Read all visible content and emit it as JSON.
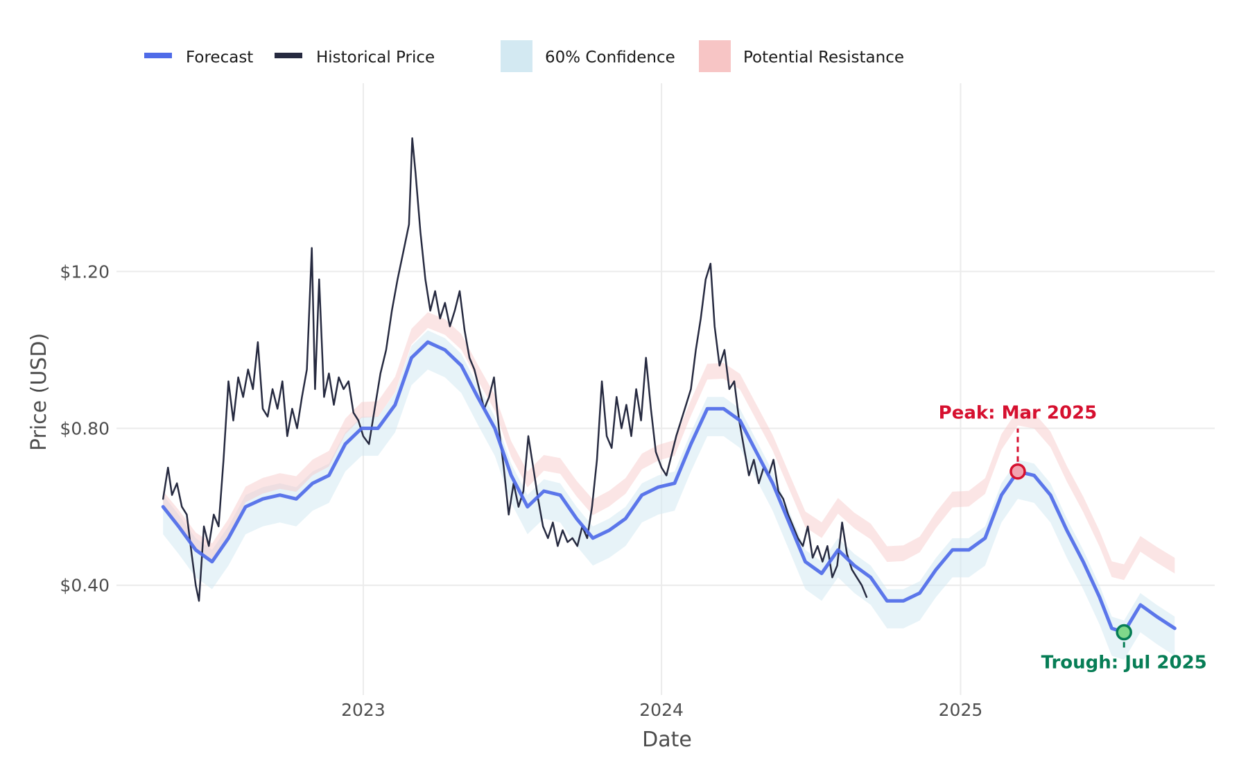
{
  "chart_data": {
    "type": "line",
    "title": "",
    "xlabel": "Date",
    "ylabel": "Price (USD)",
    "x_ticks": [
      "2023",
      "2024",
      "2025"
    ],
    "y_ticks": [
      "$0.40",
      "$0.80",
      "$1.20"
    ],
    "y_tick_values": [
      0.4,
      0.8,
      1.2
    ],
    "xlim": [
      "2022-03-05",
      "2025-11-08"
    ],
    "ylim": [
      0.12,
      1.68
    ],
    "grid": true,
    "legend_position": "top",
    "legend": [
      {
        "label": "Forecast",
        "kind": "line",
        "color": "#4f6be8"
      },
      {
        "label": "Historical Price",
        "kind": "line",
        "color": "#262a40"
      },
      {
        "label": "60% Confidence",
        "kind": "band",
        "color": "#d3e9f2"
      },
      {
        "label": "Potential Resistance",
        "kind": "band",
        "color": "#f7c5c5"
      }
    ],
    "series": [
      {
        "name": "Historical Price",
        "color": "#262a40",
        "points": [
          [
            "2022-05-01",
            0.62
          ],
          [
            "2022-05-07",
            0.7
          ],
          [
            "2022-05-12",
            0.63
          ],
          [
            "2022-05-18",
            0.66
          ],
          [
            "2022-05-24",
            0.6
          ],
          [
            "2022-05-30",
            0.58
          ],
          [
            "2022-06-05",
            0.48
          ],
          [
            "2022-06-10",
            0.4
          ],
          [
            "2022-06-14",
            0.36
          ],
          [
            "2022-06-20",
            0.55
          ],
          [
            "2022-06-26",
            0.5
          ],
          [
            "2022-07-02",
            0.58
          ],
          [
            "2022-07-08",
            0.55
          ],
          [
            "2022-07-14",
            0.72
          ],
          [
            "2022-07-20",
            0.92
          ],
          [
            "2022-07-26",
            0.82
          ],
          [
            "2022-08-01",
            0.93
          ],
          [
            "2022-08-07",
            0.88
          ],
          [
            "2022-08-13",
            0.95
          ],
          [
            "2022-08-19",
            0.9
          ],
          [
            "2022-08-25",
            1.02
          ],
          [
            "2022-08-31",
            0.85
          ],
          [
            "2022-09-06",
            0.83
          ],
          [
            "2022-09-12",
            0.9
          ],
          [
            "2022-09-18",
            0.85
          ],
          [
            "2022-09-24",
            0.92
          ],
          [
            "2022-09-30",
            0.78
          ],
          [
            "2022-10-06",
            0.85
          ],
          [
            "2022-10-12",
            0.8
          ],
          [
            "2022-10-18",
            0.88
          ],
          [
            "2022-10-24",
            0.95
          ],
          [
            "2022-10-30",
            1.26
          ],
          [
            "2022-11-03",
            0.9
          ],
          [
            "2022-11-08",
            1.18
          ],
          [
            "2022-11-14",
            0.88
          ],
          [
            "2022-11-20",
            0.94
          ],
          [
            "2022-11-26",
            0.86
          ],
          [
            "2022-12-02",
            0.93
          ],
          [
            "2022-12-08",
            0.9
          ],
          [
            "2022-12-14",
            0.92
          ],
          [
            "2022-12-20",
            0.84
          ],
          [
            "2022-12-26",
            0.82
          ],
          [
            "2023-01-01",
            0.78
          ],
          [
            "2023-01-08",
            0.76
          ],
          [
            "2023-01-15",
            0.85
          ],
          [
            "2023-01-22",
            0.94
          ],
          [
            "2023-01-29",
            1.0
          ],
          [
            "2023-02-05",
            1.1
          ],
          [
            "2023-02-12",
            1.18
          ],
          [
            "2023-02-19",
            1.25
          ],
          [
            "2023-02-26",
            1.32
          ],
          [
            "2023-03-02",
            1.54
          ],
          [
            "2023-03-06",
            1.45
          ],
          [
            "2023-03-12",
            1.3
          ],
          [
            "2023-03-18",
            1.18
          ],
          [
            "2023-03-24",
            1.1
          ],
          [
            "2023-03-30",
            1.15
          ],
          [
            "2023-04-05",
            1.08
          ],
          [
            "2023-04-11",
            1.12
          ],
          [
            "2023-04-17",
            1.06
          ],
          [
            "2023-04-23",
            1.1
          ],
          [
            "2023-04-29",
            1.15
          ],
          [
            "2023-05-05",
            1.05
          ],
          [
            "2023-05-11",
            0.98
          ],
          [
            "2023-05-17",
            0.95
          ],
          [
            "2023-05-23",
            0.9
          ],
          [
            "2023-05-29",
            0.85
          ],
          [
            "2023-06-04",
            0.88
          ],
          [
            "2023-06-10",
            0.93
          ],
          [
            "2023-06-16",
            0.8
          ],
          [
            "2023-06-22",
            0.7
          ],
          [
            "2023-06-28",
            0.58
          ],
          [
            "2023-07-04",
            0.66
          ],
          [
            "2023-07-10",
            0.6
          ],
          [
            "2023-07-16",
            0.64
          ],
          [
            "2023-07-22",
            0.78
          ],
          [
            "2023-07-28",
            0.7
          ],
          [
            "2023-08-03",
            0.62
          ],
          [
            "2023-08-09",
            0.55
          ],
          [
            "2023-08-15",
            0.52
          ],
          [
            "2023-08-21",
            0.56
          ],
          [
            "2023-08-27",
            0.5
          ],
          [
            "2023-09-02",
            0.54
          ],
          [
            "2023-09-08",
            0.51
          ],
          [
            "2023-09-14",
            0.52
          ],
          [
            "2023-09-20",
            0.5
          ],
          [
            "2023-09-26",
            0.55
          ],
          [
            "2023-10-02",
            0.52
          ],
          [
            "2023-10-08",
            0.6
          ],
          [
            "2023-10-14",
            0.72
          ],
          [
            "2023-10-20",
            0.92
          ],
          [
            "2023-10-26",
            0.78
          ],
          [
            "2023-11-01",
            0.75
          ],
          [
            "2023-11-07",
            0.88
          ],
          [
            "2023-11-13",
            0.8
          ],
          [
            "2023-11-19",
            0.86
          ],
          [
            "2023-11-25",
            0.78
          ],
          [
            "2023-12-01",
            0.9
          ],
          [
            "2023-12-07",
            0.82
          ],
          [
            "2023-12-13",
            0.98
          ],
          [
            "2023-12-19",
            0.85
          ],
          [
            "2023-12-25",
            0.74
          ],
          [
            "2024-01-01",
            0.7
          ],
          [
            "2024-01-07",
            0.68
          ],
          [
            "2024-01-13",
            0.73
          ],
          [
            "2024-01-19",
            0.78
          ],
          [
            "2024-01-25",
            0.82
          ],
          [
            "2024-01-31",
            0.86
          ],
          [
            "2024-02-06",
            0.9
          ],
          [
            "2024-02-12",
            1.0
          ],
          [
            "2024-02-18",
            1.08
          ],
          [
            "2024-02-24",
            1.18
          ],
          [
            "2024-03-01",
            1.22
          ],
          [
            "2024-03-06",
            1.06
          ],
          [
            "2024-03-12",
            0.96
          ],
          [
            "2024-03-18",
            1.0
          ],
          [
            "2024-03-24",
            0.9
          ],
          [
            "2024-03-30",
            0.92
          ],
          [
            "2024-04-05",
            0.82
          ],
          [
            "2024-04-11",
            0.75
          ],
          [
            "2024-04-17",
            0.68
          ],
          [
            "2024-04-23",
            0.72
          ],
          [
            "2024-04-29",
            0.66
          ],
          [
            "2024-05-05",
            0.7
          ],
          [
            "2024-05-11",
            0.68
          ],
          [
            "2024-05-17",
            0.72
          ],
          [
            "2024-05-23",
            0.64
          ],
          [
            "2024-05-29",
            0.62
          ],
          [
            "2024-06-04",
            0.58
          ],
          [
            "2024-06-10",
            0.55
          ],
          [
            "2024-06-16",
            0.52
          ],
          [
            "2024-06-22",
            0.5
          ],
          [
            "2024-06-28",
            0.55
          ],
          [
            "2024-07-04",
            0.47
          ],
          [
            "2024-07-10",
            0.5
          ],
          [
            "2024-07-16",
            0.46
          ],
          [
            "2024-07-22",
            0.5
          ],
          [
            "2024-07-28",
            0.42
          ],
          [
            "2024-08-03",
            0.45
          ],
          [
            "2024-08-09",
            0.56
          ],
          [
            "2024-08-15",
            0.48
          ],
          [
            "2024-08-21",
            0.44
          ],
          [
            "2024-08-27",
            0.42
          ],
          [
            "2024-09-02",
            0.4
          ],
          [
            "2024-09-08",
            0.37
          ]
        ]
      },
      {
        "name": "Forecast",
        "color": "#4f6be8",
        "points": [
          [
            "2022-05-01",
            0.6
          ],
          [
            "2022-05-20",
            0.55
          ],
          [
            "2022-06-10",
            0.49
          ],
          [
            "2022-06-30",
            0.46
          ],
          [
            "2022-07-20",
            0.52
          ],
          [
            "2022-08-10",
            0.6
          ],
          [
            "2022-08-31",
            0.62
          ],
          [
            "2022-09-21",
            0.63
          ],
          [
            "2022-10-11",
            0.62
          ],
          [
            "2022-10-31",
            0.66
          ],
          [
            "2022-11-20",
            0.68
          ],
          [
            "2022-12-10",
            0.76
          ],
          [
            "2022-12-30",
            0.8
          ],
          [
            "2023-01-19",
            0.8
          ],
          [
            "2023-02-09",
            0.86
          ],
          [
            "2023-03-01",
            0.98
          ],
          [
            "2023-03-21",
            1.02
          ],
          [
            "2023-04-11",
            1.0
          ],
          [
            "2023-05-01",
            0.96
          ],
          [
            "2023-05-21",
            0.88
          ],
          [
            "2023-06-11",
            0.8
          ],
          [
            "2023-07-01",
            0.68
          ],
          [
            "2023-07-21",
            0.6
          ],
          [
            "2023-08-10",
            0.64
          ],
          [
            "2023-08-30",
            0.63
          ],
          [
            "2023-09-19",
            0.57
          ],
          [
            "2023-10-09",
            0.52
          ],
          [
            "2023-10-29",
            0.54
          ],
          [
            "2023-11-18",
            0.57
          ],
          [
            "2023-12-08",
            0.63
          ],
          [
            "2023-12-28",
            0.65
          ],
          [
            "2024-01-17",
            0.66
          ],
          [
            "2024-02-06",
            0.76
          ],
          [
            "2024-02-26",
            0.85
          ],
          [
            "2024-03-17",
            0.85
          ],
          [
            "2024-04-06",
            0.82
          ],
          [
            "2024-04-26",
            0.74
          ],
          [
            "2024-05-16",
            0.66
          ],
          [
            "2024-06-05",
            0.56
          ],
          [
            "2024-06-25",
            0.46
          ],
          [
            "2024-07-15",
            0.43
          ],
          [
            "2024-08-04",
            0.49
          ],
          [
            "2024-08-24",
            0.45
          ],
          [
            "2024-09-13",
            0.42
          ],
          [
            "2024-10-03",
            0.36
          ],
          [
            "2024-10-23",
            0.36
          ],
          [
            "2024-11-12",
            0.38
          ],
          [
            "2024-12-02",
            0.44
          ],
          [
            "2024-12-22",
            0.49
          ],
          [
            "2025-01-11",
            0.49
          ],
          [
            "2025-01-31",
            0.52
          ],
          [
            "2025-02-20",
            0.63
          ],
          [
            "2025-03-12",
            0.69
          ],
          [
            "2025-04-01",
            0.68
          ],
          [
            "2025-04-21",
            0.63
          ],
          [
            "2025-05-11",
            0.54
          ],
          [
            "2025-05-31",
            0.46
          ],
          [
            "2025-06-20",
            0.37
          ],
          [
            "2025-07-05",
            0.29
          ],
          [
            "2025-07-20",
            0.28
          ],
          [
            "2025-08-09",
            0.35
          ],
          [
            "2025-08-29",
            0.32
          ],
          [
            "2025-09-20",
            0.29
          ]
        ]
      }
    ],
    "bands": [
      {
        "name": "60% Confidence",
        "color": "#d3e9f2",
        "below": 0.07,
        "above": 0.03,
        "from": "2022-05-01"
      },
      {
        "name": "Potential Resistance",
        "color": "#f7c5c5",
        "above_min": 0.04,
        "above_max": 0.18,
        "from": "2022-05-01"
      }
    ],
    "annotations": [
      {
        "label": "Peak: Mar 2025",
        "x": "2025-03-12",
        "y": 0.69,
        "color": "#d6102f",
        "marker_fill": "#f2a3b0"
      },
      {
        "label": "Trough: Jul 2025",
        "x": "2025-07-20",
        "y": 0.28,
        "color": "#067d55",
        "marker_fill": "#7fd88a"
      }
    ]
  }
}
